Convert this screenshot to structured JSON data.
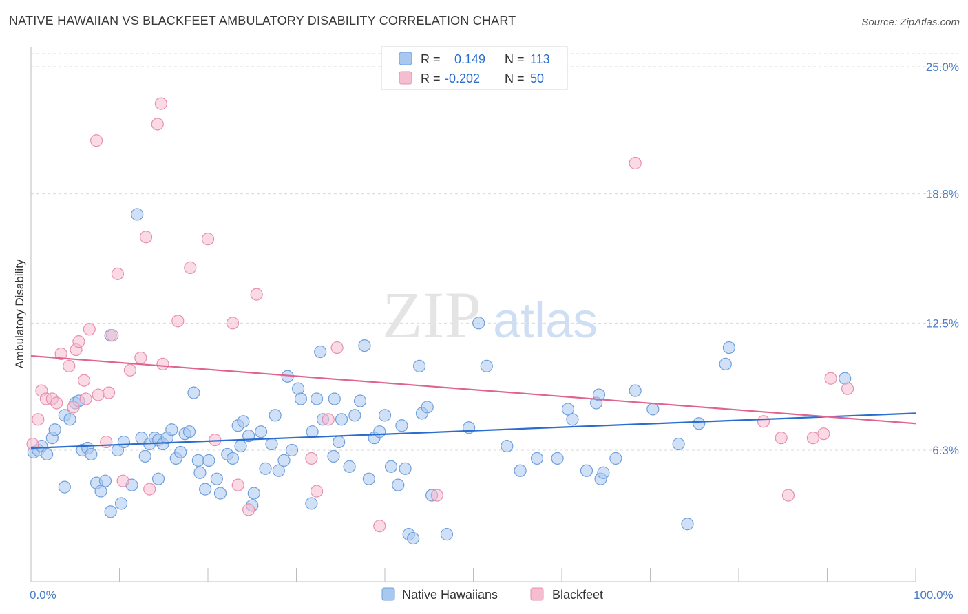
{
  "title": "NATIVE HAWAIIAN VS BLACKFEET AMBULATORY DISABILITY CORRELATION CHART",
  "source": "Source: ZipAtlas.com",
  "watermark": {
    "zip": "ZIP",
    "atlas": "atlas"
  },
  "colors": {
    "blue_fill": "#a9c8f0",
    "blue_stroke": "#6f9fdc",
    "blue_line": "#2a6dcf",
    "pink_fill": "#f6bcd0",
    "pink_stroke": "#e88fae",
    "pink_line": "#e0648f",
    "tick_text": "#4a7cc9",
    "grid": "#d9d9d9"
  },
  "legend_top": {
    "rows": [
      {
        "r_label": "R =",
        "r_value": "0.149",
        "n_label": "N =",
        "n_value": "113"
      },
      {
        "r_label": "R =",
        "r_value": "-0.202",
        "n_label": "N =",
        "n_value": "50"
      }
    ]
  },
  "legend_bottom": [
    "Native Hawaiians",
    "Blackfeet"
  ],
  "chart_data": {
    "type": "scatter",
    "xlabel": "",
    "ylabel": "Ambulatory Disability",
    "xlim": [
      0,
      100
    ],
    "ylim": [
      0,
      26
    ],
    "x_tick_labels": [
      "0.0%",
      "100.0%"
    ],
    "y_ticks": [
      6.3,
      12.5,
      18.8,
      25.0
    ],
    "y_tick_labels": [
      "6.3%",
      "12.5%",
      "18.8%",
      "25.0%"
    ],
    "grid": "horizontal dashed",
    "series": [
      {
        "name": "Native Hawaiians",
        "trend": {
          "x0": 0,
          "y0": 6.4,
          "x1": 100,
          "y1": 8.1
        },
        "points": [
          [
            0.3,
            6.2
          ],
          [
            0.8,
            6.3
          ],
          [
            1.2,
            6.5
          ],
          [
            1.8,
            6.1
          ],
          [
            2.4,
            6.9
          ],
          [
            2.7,
            7.3
          ],
          [
            3.8,
            8.0
          ],
          [
            3.8,
            4.5
          ],
          [
            4.4,
            7.8
          ],
          [
            5.0,
            8.6
          ],
          [
            5.4,
            8.7
          ],
          [
            5.8,
            6.3
          ],
          [
            6.4,
            6.4
          ],
          [
            6.8,
            6.1
          ],
          [
            7.4,
            4.7
          ],
          [
            7.9,
            4.3
          ],
          [
            8.4,
            4.8
          ],
          [
            9.0,
            3.3
          ],
          [
            9.0,
            11.9
          ],
          [
            9.8,
            6.3
          ],
          [
            10.2,
            3.7
          ],
          [
            10.5,
            6.7
          ],
          [
            11.4,
            4.6
          ],
          [
            12.0,
            17.8
          ],
          [
            12.5,
            6.9
          ],
          [
            12.9,
            6.0
          ],
          [
            13.4,
            6.6
          ],
          [
            14.0,
            6.9
          ],
          [
            14.4,
            6.8
          ],
          [
            14.4,
            4.9
          ],
          [
            14.9,
            6.6
          ],
          [
            15.4,
            6.9
          ],
          [
            15.9,
            7.3
          ],
          [
            16.4,
            5.9
          ],
          [
            16.9,
            6.2
          ],
          [
            17.4,
            7.1
          ],
          [
            17.9,
            7.2
          ],
          [
            18.4,
            9.1
          ],
          [
            18.9,
            5.8
          ],
          [
            19.1,
            5.2
          ],
          [
            19.7,
            4.4
          ],
          [
            20.1,
            5.8
          ],
          [
            21.0,
            4.9
          ],
          [
            21.4,
            4.2
          ],
          [
            22.2,
            6.1
          ],
          [
            22.8,
            5.9
          ],
          [
            23.4,
            7.5
          ],
          [
            23.7,
            6.5
          ],
          [
            24.0,
            7.7
          ],
          [
            24.6,
            7.0
          ],
          [
            25.2,
            4.2
          ],
          [
            25.0,
            3.6
          ],
          [
            26.0,
            7.2
          ],
          [
            26.5,
            5.4
          ],
          [
            27.2,
            6.6
          ],
          [
            27.6,
            8.0
          ],
          [
            28.0,
            5.3
          ],
          [
            28.6,
            5.8
          ],
          [
            29.0,
            9.9
          ],
          [
            29.5,
            6.3
          ],
          [
            30.2,
            9.3
          ],
          [
            30.5,
            8.8
          ],
          [
            31.7,
            3.7
          ],
          [
            31.8,
            7.2
          ],
          [
            32.3,
            8.8
          ],
          [
            32.7,
            11.1
          ],
          [
            33.0,
            7.8
          ],
          [
            34.2,
            6.0
          ],
          [
            34.3,
            8.8
          ],
          [
            34.8,
            6.7
          ],
          [
            35.1,
            7.8
          ],
          [
            36.0,
            5.5
          ],
          [
            36.6,
            8.0
          ],
          [
            37.2,
            8.7
          ],
          [
            37.7,
            11.4
          ],
          [
            38.2,
            4.9
          ],
          [
            38.8,
            6.9
          ],
          [
            39.4,
            7.2
          ],
          [
            40.0,
            8.0
          ],
          [
            40.7,
            5.5
          ],
          [
            41.5,
            4.6
          ],
          [
            41.9,
            7.5
          ],
          [
            42.3,
            5.4
          ],
          [
            42.7,
            2.2
          ],
          [
            43.2,
            2.0
          ],
          [
            43.9,
            10.4
          ],
          [
            44.2,
            8.1
          ],
          [
            44.8,
            8.4
          ],
          [
            45.3,
            4.1
          ],
          [
            47.0,
            2.2
          ],
          [
            49.5,
            7.4
          ],
          [
            50.6,
            12.5
          ],
          [
            51.5,
            10.4
          ],
          [
            53.8,
            6.5
          ],
          [
            55.3,
            5.3
          ],
          [
            57.2,
            5.9
          ],
          [
            59.5,
            5.9
          ],
          [
            60.7,
            8.3
          ],
          [
            61.2,
            7.8
          ],
          [
            62.8,
            5.3
          ],
          [
            63.9,
            8.6
          ],
          [
            64.2,
            9.0
          ],
          [
            64.4,
            4.9
          ],
          [
            64.7,
            5.2
          ],
          [
            66.1,
            5.9
          ],
          [
            68.3,
            9.2
          ],
          [
            70.3,
            8.3
          ],
          [
            73.2,
            6.6
          ],
          [
            74.2,
            2.7
          ],
          [
            75.5,
            7.6
          ],
          [
            78.5,
            10.5
          ],
          [
            78.9,
            11.3
          ],
          [
            92.0,
            9.8
          ]
        ]
      },
      {
        "name": "Blackfeet",
        "trend": {
          "x0": 0,
          "y0": 10.9,
          "x1": 100,
          "y1": 7.6
        },
        "points": [
          [
            0.8,
            7.8
          ],
          [
            1.2,
            9.2
          ],
          [
            1.7,
            8.8
          ],
          [
            2.4,
            8.8
          ],
          [
            2.9,
            8.6
          ],
          [
            3.4,
            11.0
          ],
          [
            4.3,
            10.4
          ],
          [
            4.8,
            8.4
          ],
          [
            5.1,
            11.2
          ],
          [
            5.4,
            11.6
          ],
          [
            6.0,
            9.7
          ],
          [
            6.2,
            8.8
          ],
          [
            6.6,
            12.2
          ],
          [
            7.4,
            21.4
          ],
          [
            7.6,
            9.0
          ],
          [
            8.5,
            6.7
          ],
          [
            8.8,
            9.1
          ],
          [
            9.2,
            11.9
          ],
          [
            9.8,
            14.9
          ],
          [
            10.4,
            4.8
          ],
          [
            11.2,
            10.2
          ],
          [
            12.4,
            10.8
          ],
          [
            13.0,
            16.7
          ],
          [
            13.4,
            4.4
          ],
          [
            14.3,
            22.2
          ],
          [
            14.7,
            23.2
          ],
          [
            14.9,
            10.5
          ],
          [
            16.6,
            12.6
          ],
          [
            18.0,
            15.2
          ],
          [
            20.0,
            16.6
          ],
          [
            20.8,
            6.8
          ],
          [
            22.8,
            12.5
          ],
          [
            23.4,
            4.6
          ],
          [
            24.6,
            3.4
          ],
          [
            25.5,
            13.9
          ],
          [
            31.7,
            5.9
          ],
          [
            32.3,
            4.3
          ],
          [
            33.6,
            7.8
          ],
          [
            34.6,
            11.3
          ],
          [
            39.4,
            2.6
          ],
          [
            45.9,
            4.1
          ],
          [
            68.3,
            20.3
          ],
          [
            82.8,
            7.7
          ],
          [
            84.8,
            6.9
          ],
          [
            85.6,
            4.1
          ],
          [
            88.4,
            6.9
          ],
          [
            89.6,
            7.1
          ],
          [
            90.4,
            9.8
          ],
          [
            92.3,
            9.3
          ],
          [
            0.2,
            6.6
          ]
        ]
      }
    ]
  }
}
